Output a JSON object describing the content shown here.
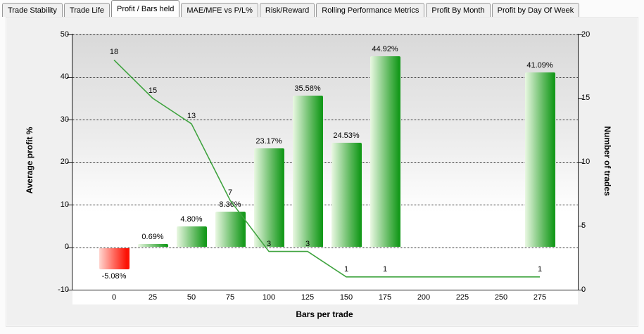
{
  "window": {
    "kind": "trade-analysis-tabbed-view"
  },
  "tabs": [
    {
      "label": "Trade Stability",
      "active": false
    },
    {
      "label": "Trade Life",
      "active": false
    },
    {
      "label": "Profit / Bars held",
      "active": true
    },
    {
      "label": "MAE/MFE vs P/L%",
      "active": false
    },
    {
      "label": "Risk/Reward",
      "active": false
    },
    {
      "label": "Rolling Performance Metrics",
      "active": false
    },
    {
      "label": "Profit By Month",
      "active": false
    },
    {
      "label": "Profit by Day Of Week",
      "active": false
    }
  ],
  "chart_data": {
    "type": "bar",
    "title": "",
    "xlabel": "Bars per trade",
    "ylabel_left": "Average profit %",
    "ylabel_right": "Number of trades",
    "x_ticks": [
      0,
      25,
      50,
      75,
      100,
      125,
      150,
      175,
      200,
      225,
      250,
      275
    ],
    "left_axis": {
      "label": "Average profit %",
      "min": -10,
      "max": 50,
      "ticks": [
        -10,
        0,
        10,
        20,
        30,
        40,
        50
      ]
    },
    "right_axis": {
      "label": "Number of trades",
      "min": 0,
      "max": 20,
      "ticks": [
        0,
        5,
        10,
        15,
        20
      ]
    },
    "categories": [
      0,
      25,
      50,
      75,
      100,
      125,
      150,
      175,
      275
    ],
    "series": [
      {
        "name": "Average profit %",
        "type": "bar",
        "axis": "left",
        "values": [
          -5.08,
          0.69,
          4.8,
          8.36,
          23.17,
          35.58,
          24.53,
          44.92,
          41.09
        ],
        "labels": [
          "-5.08%",
          "0.69%",
          "4.80%",
          "8.36%",
          "23.17%",
          "35.58%",
          "24.53%",
          "44.92%",
          "41.09%"
        ]
      },
      {
        "name": "Number of trades",
        "type": "line",
        "axis": "right",
        "values": [
          18,
          15,
          13,
          7,
          3,
          3,
          1,
          1,
          1
        ],
        "labels": [
          "18",
          "15",
          "13",
          "7",
          "3",
          "3",
          "1",
          "1",
          "1"
        ]
      }
    ],
    "grid": "horizontal-dotted",
    "legend": "none",
    "colors": {
      "bar_positive_light": "#eaf8e3",
      "bar_positive_mid": "#5cb85c",
      "bar_positive_dark": "#169a1c",
      "bar_negative_light": "#ffd6d0",
      "bar_negative_mid": "#ff7166",
      "bar_negative_dark": "#fc1205",
      "line": "#3fa33f",
      "panel_background": "#f0f0f0"
    }
  }
}
